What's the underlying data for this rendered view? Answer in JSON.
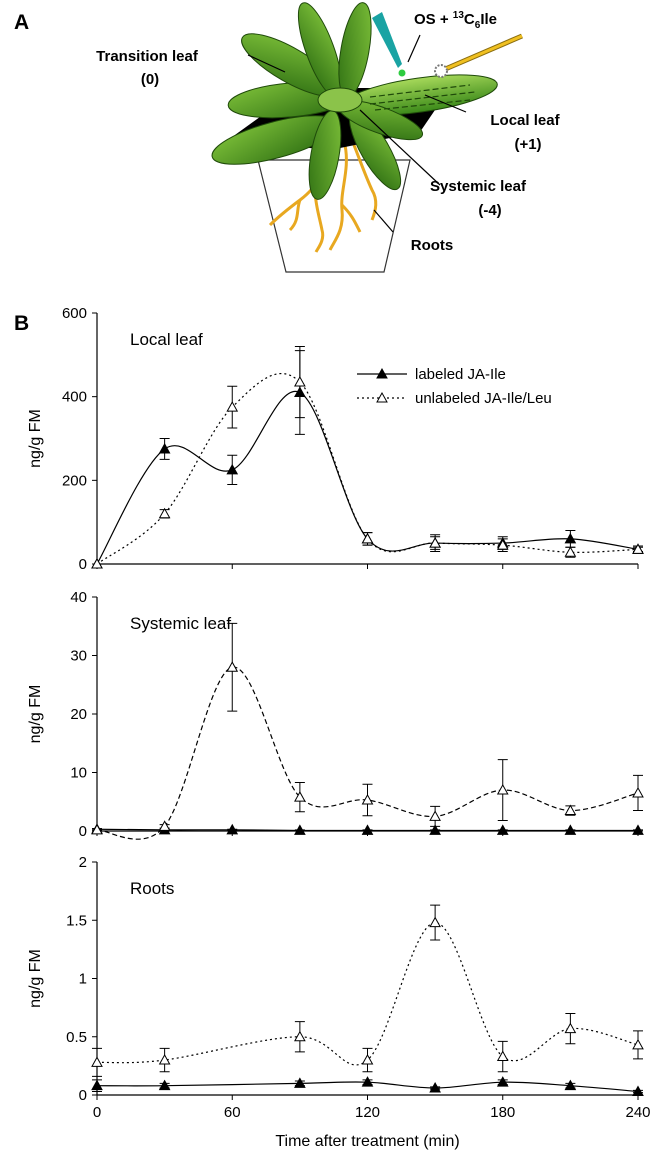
{
  "panel_a": "A",
  "panel_b": "B",
  "diagram": {
    "transition_leaf": "Transition leaf",
    "transition_index": "(0)",
    "os_label": {
      "prefix": "OS + ",
      "superscript": "13",
      "element": "C",
      "subscript": "6",
      "suffix": "Ile"
    },
    "local_leaf": "Local leaf",
    "local_index": "(+1)",
    "systemic_leaf": "Systemic leaf",
    "systemic_index": "(-4)",
    "roots": "Roots"
  },
  "chart_data": [
    {
      "type": "line",
      "title": "Local leaf",
      "ylabel": "ng/g FM",
      "x": [
        0,
        30,
        60,
        90,
        120,
        150,
        180,
        210,
        240
      ],
      "xlim": [
        0,
        240
      ],
      "xticks": [
        0,
        60,
        120,
        180,
        240
      ],
      "ylim": [
        0,
        600
      ],
      "yticks": [
        0,
        200,
        400,
        600
      ],
      "legend": "upper right",
      "series": [
        {
          "name": "labeled JA-Ile",
          "color": "#000000",
          "line_style": "solid",
          "marker": "filled",
          "values": [
            0,
            275,
            225,
            410,
            60,
            50,
            50,
            60,
            35
          ],
          "errors": [
            0,
            25,
            35,
            100,
            15,
            20,
            15,
            20,
            5
          ]
        },
        {
          "name": "unlabeled JA-Ile/Leu",
          "color": "#000000",
          "line_style": "dotted",
          "marker": "open",
          "values": [
            0,
            120,
            375,
            435,
            60,
            50,
            45,
            28,
            35
          ],
          "errors": [
            0,
            10,
            50,
            85,
            15,
            15,
            15,
            12,
            8
          ]
        }
      ]
    },
    {
      "type": "line",
      "title": "Systemic leaf",
      "ylabel": "ng/g FM",
      "x": [
        0,
        30,
        60,
        90,
        120,
        150,
        180,
        210,
        240
      ],
      "xlim": [
        0,
        240
      ],
      "xticks": [
        0,
        60,
        120,
        180,
        240
      ],
      "ylim": [
        0,
        40
      ],
      "yticks": [
        0,
        10,
        20,
        30,
        40
      ],
      "series": [
        {
          "color": "#000000",
          "line_style": "solid",
          "marker": "filled",
          "values": [
            0.3,
            0.2,
            0.2,
            0.1,
            0.1,
            0.1,
            0.1,
            0.1,
            0.1
          ],
          "errors": [
            0.1,
            0.1,
            0.1,
            0.1,
            0.1,
            0.1,
            0.1,
            0.1,
            0.1
          ]
        },
        {
          "color": "#000000",
          "line_style": "dashed",
          "marker": "open",
          "values": [
            0.2,
            0.8,
            28,
            5.8,
            5.3,
            2.5,
            7,
            3.5,
            6.5
          ],
          "errors": [
            0.2,
            0.3,
            7.5,
            2.5,
            2.7,
            1.7,
            5.2,
            0.8,
            3
          ]
        }
      ]
    },
    {
      "type": "line",
      "title": "Roots",
      "ylabel": "ng/g FM",
      "xlabel": "Time after treatment (min)",
      "x": [
        0,
        30,
        90,
        120,
        150,
        180,
        210,
        240
      ],
      "xlim": [
        0,
        240
      ],
      "xticks": [
        0,
        60,
        120,
        180,
        240
      ],
      "ylim": [
        0,
        2
      ],
      "yticks": [
        0,
        0.5,
        1,
        1.5,
        2
      ],
      "series": [
        {
          "color": "#000000",
          "line_style": "solid",
          "marker": "filled",
          "values": [
            0.08,
            0.08,
            0.1,
            0.11,
            0.06,
            0.11,
            0.08,
            0.03
          ],
          "errors": [
            0.05,
            0.02,
            0.02,
            0.02,
            0.01,
            0.02,
            0.02,
            0.01
          ]
        },
        {
          "color": "#000000",
          "line_style": "dotted",
          "marker": "open",
          "values": [
            0.28,
            0.3,
            0.5,
            0.3,
            1.48,
            0.33,
            0.57,
            0.43
          ],
          "errors": [
            0.12,
            0.1,
            0.13,
            0.1,
            0.15,
            0.13,
            0.13,
            0.12
          ]
        }
      ]
    }
  ]
}
